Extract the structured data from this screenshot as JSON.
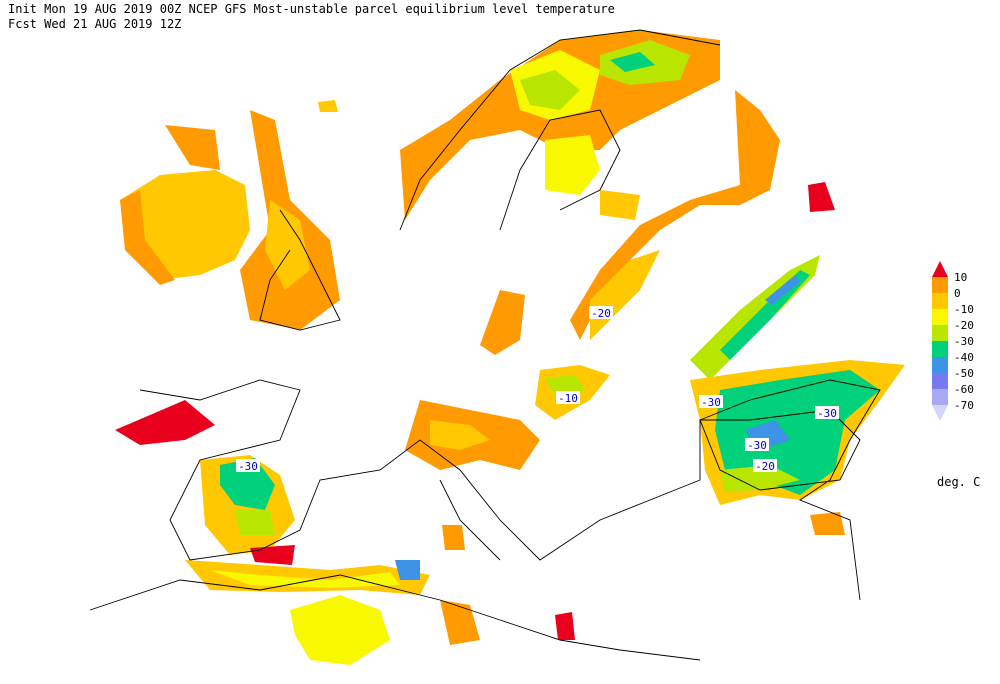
{
  "header": {
    "line1": "Init  Mon 19 AUG 2019 00Z  NCEP GFS Most-unstable parcel equilibrium level temperature",
    "line2": "Fcst Wed 21 AUG 2019 12Z"
  },
  "legend": {
    "levels": [
      10,
      0,
      -10,
      -20,
      -30,
      -40,
      -50,
      -60,
      -70
    ],
    "colors": [
      "#e8001c",
      "#ff9a00",
      "#ffc800",
      "#f8f800",
      "#b8e600",
      "#00d17a",
      "#3d93e6",
      "#7878f0",
      "#a8a8f5",
      "#d4d4fa"
    ],
    "unit": "deg. C"
  },
  "map": {
    "contour_labels": [
      "-30",
      "-20",
      "-10",
      "-30",
      "-30",
      "-30",
      "-20"
    ]
  }
}
